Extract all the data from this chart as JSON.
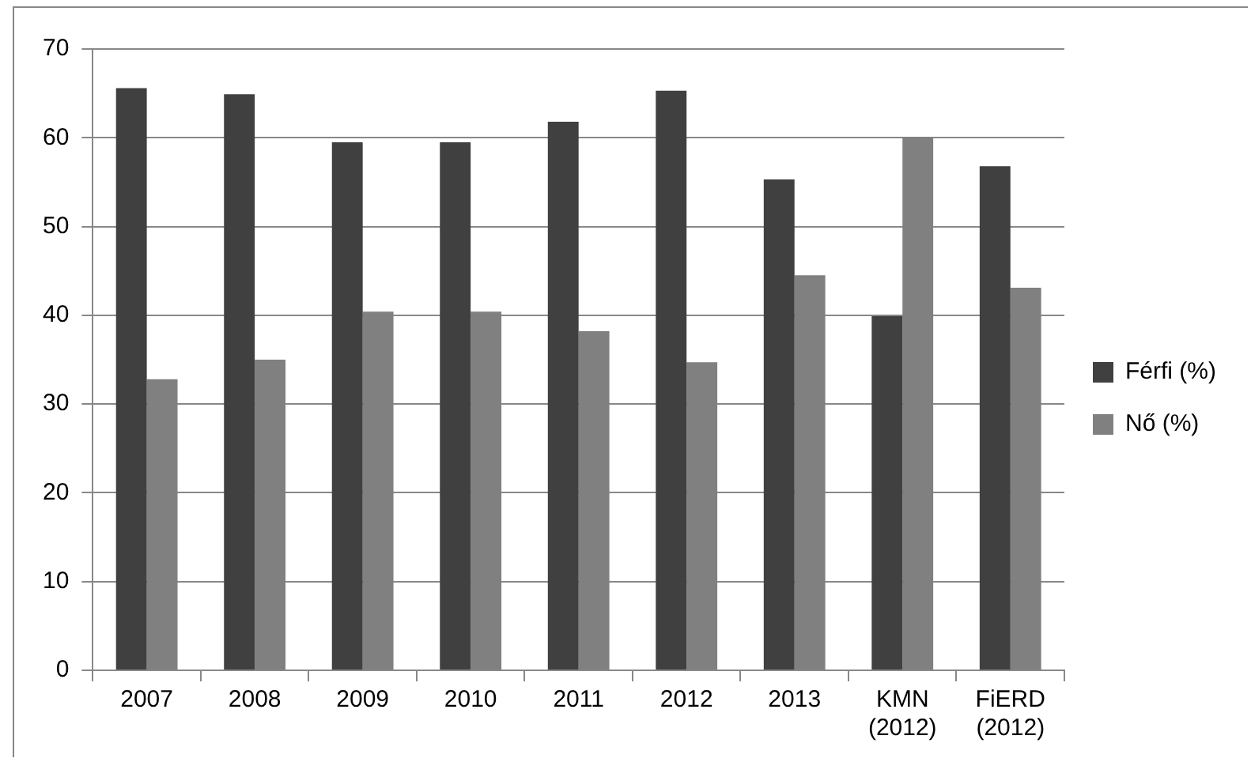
{
  "chart_data": {
    "type": "bar",
    "categories": [
      "2007",
      "2008",
      "2009",
      "2010",
      "2011",
      "2012",
      "2013",
      "KMN (2012)",
      "FiERD (2012)"
    ],
    "series": [
      {
        "name": "Férfi (%)",
        "color": "#404040",
        "values": [
          65.6,
          64.9,
          59.5,
          59.5,
          61.8,
          65.3,
          55.3,
          39.9,
          56.8
        ]
      },
      {
        "name": "Nő (%)",
        "color": "#808080",
        "values": [
          32.8,
          35.0,
          40.4,
          40.4,
          38.2,
          34.7,
          44.5,
          60.1,
          43.1
        ]
      }
    ],
    "ylim": [
      0,
      70
    ],
    "yticks": [
      0,
      10,
      20,
      30,
      40,
      50,
      60,
      70
    ],
    "grid": "y",
    "legend": "right"
  }
}
